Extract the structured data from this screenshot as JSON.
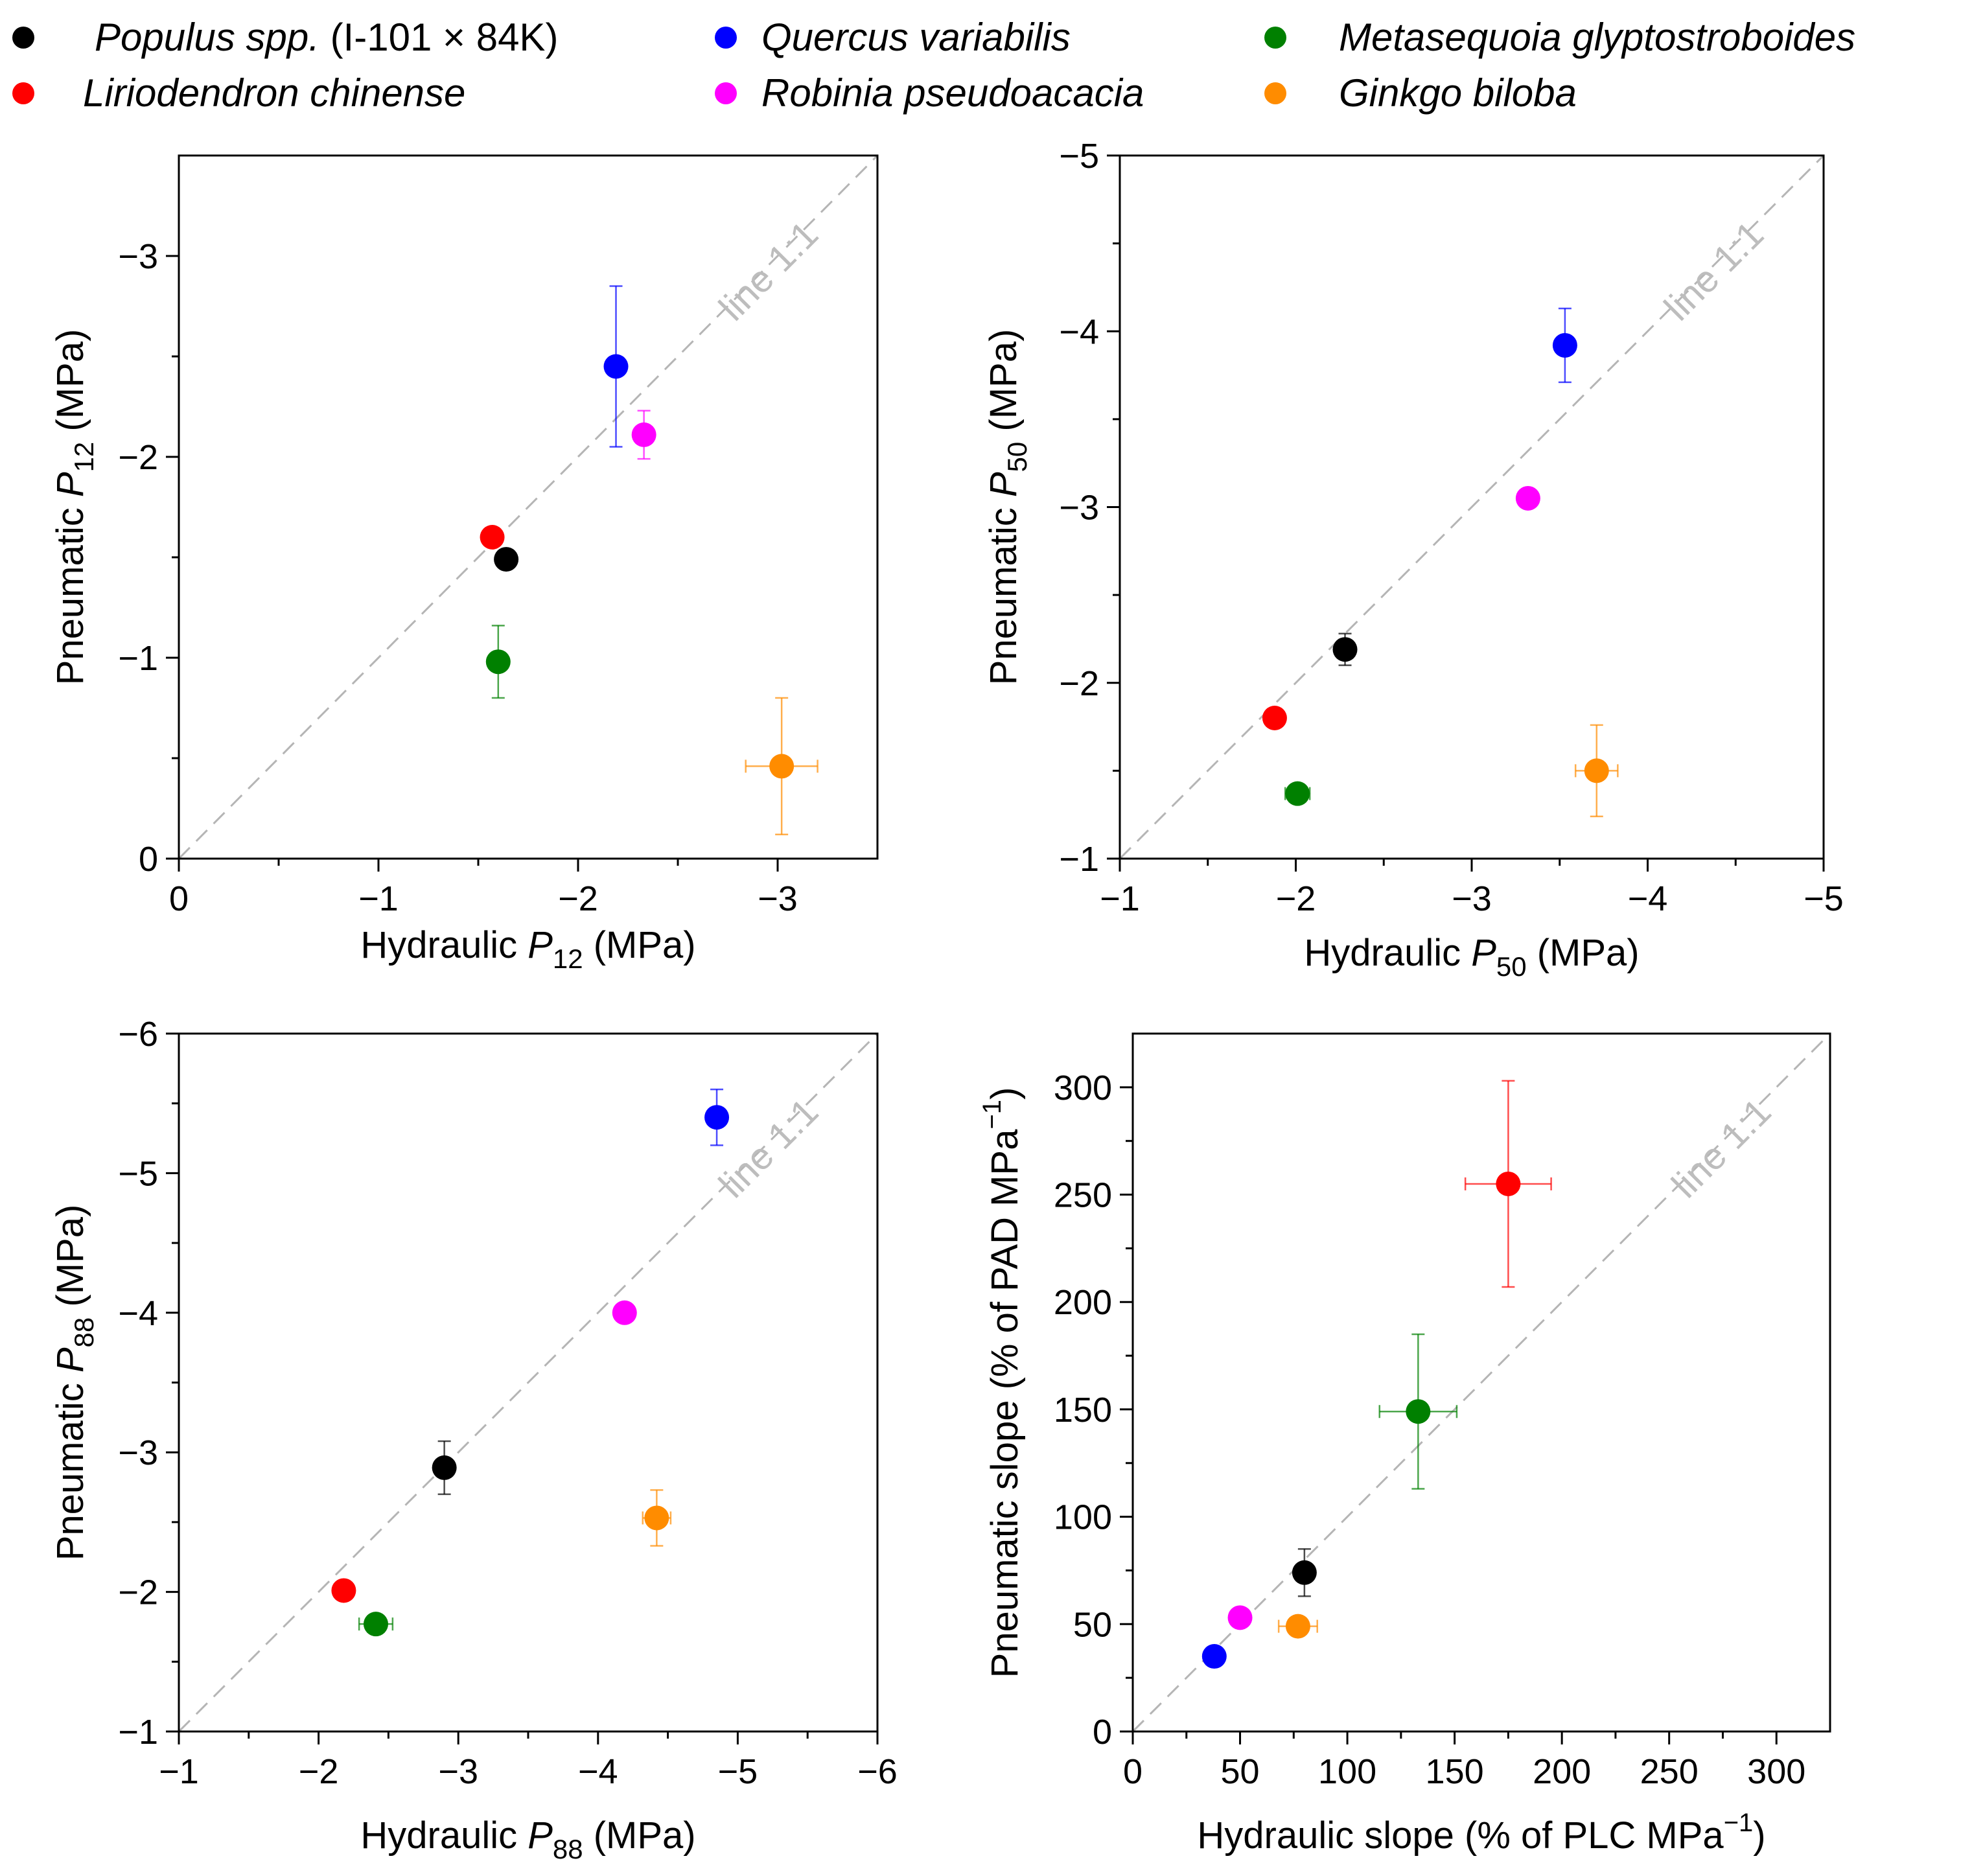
{
  "legend": [
    {
      "name": "Populus spp.",
      "suffix": " (I-101 × 84K)",
      "color": "#000000"
    },
    {
      "name": "Liriodendron chinense",
      "suffix": "",
      "color": "#ff0000"
    },
    {
      "name": "Quercus variabilis",
      "suffix": "",
      "color": "#0000ff"
    },
    {
      "name": "Robinia pseudoacacia",
      "suffix": "",
      "color": "#ff00ff"
    },
    {
      "name": "Metasequoia glyptostroboides",
      "suffix": "",
      "color": "#008000"
    },
    {
      "name": "Ginkgo biloba",
      "suffix": "",
      "color": "#ff8c00"
    }
  ],
  "chart_data": [
    {
      "type": "scatter",
      "id": "p12",
      "xlabel": {
        "prefix": "Hydraulic ",
        "symbol": "P",
        "sub": "12",
        "unit": " (MPa)"
      },
      "ylabel": {
        "prefix": "Pneumatic ",
        "symbol": "P",
        "sub": "12",
        "unit": " (MPa)"
      },
      "xlim": [
        0,
        -3.5
      ],
      "ylim": [
        0,
        -3.5
      ],
      "xticks": [
        0,
        -1,
        -2,
        -3
      ],
      "xtick_labels": [
        "0",
        "−1",
        "−2",
        "−3"
      ],
      "yticks": [
        0,
        -1,
        -2,
        -3
      ],
      "ytick_labels": [
        "0",
        "−1",
        "−2",
        "−3"
      ],
      "reference_line": "line 1:1",
      "points": [
        {
          "species": "Populus spp.",
          "color": "#000000",
          "x": -1.64,
          "y": -1.49,
          "xerr": 0,
          "yerr": 0
        },
        {
          "species": "Liriodendron chinense",
          "color": "#ff0000",
          "x": -1.57,
          "y": -1.6,
          "xerr": 0,
          "yerr": 0
        },
        {
          "species": "Quercus variabilis",
          "color": "#0000ff",
          "x": -2.19,
          "y": -2.45,
          "xerr": 0,
          "yerr": 0.4
        },
        {
          "species": "Robinia pseudoacacia",
          "color": "#ff00ff",
          "x": -2.33,
          "y": -2.11,
          "xerr": 0,
          "yerr": 0.12
        },
        {
          "species": "Metasequoia glyptostroboides",
          "color": "#008000",
          "x": -1.6,
          "y": -0.98,
          "xerr": 0,
          "yerr": 0.18
        },
        {
          "species": "Ginkgo biloba",
          "color": "#ff8c00",
          "x": -3.02,
          "y": -0.46,
          "xerr": 0.18,
          "yerr": 0.34
        }
      ]
    },
    {
      "type": "scatter",
      "id": "p50",
      "xlabel": {
        "prefix": "Hydraulic ",
        "symbol": "P",
        "sub": "50",
        "unit": " (MPa)"
      },
      "ylabel": {
        "prefix": "Pneumatic ",
        "symbol": "P",
        "sub": "50",
        "unit": " (MPa)"
      },
      "xlim": [
        -1,
        -5
      ],
      "ylim": [
        -1,
        -5
      ],
      "xticks": [
        -1,
        -2,
        -3,
        -4,
        -5
      ],
      "xtick_labels": [
        "−1",
        "−2",
        "−3",
        "−4",
        "−5"
      ],
      "yticks": [
        -1,
        -2,
        -3,
        -4,
        -5
      ],
      "ytick_labels": [
        "−1",
        "−2",
        "−3",
        "−4",
        "−5"
      ],
      "reference_line": "line 1:1",
      "points": [
        {
          "species": "Populus spp.",
          "color": "#000000",
          "x": -2.28,
          "y": -2.19,
          "xerr": 0,
          "yerr": 0.09
        },
        {
          "species": "Liriodendron chinense",
          "color": "#ff0000",
          "x": -1.88,
          "y": -1.8,
          "xerr": 0,
          "yerr": 0
        },
        {
          "species": "Quercus variabilis",
          "color": "#0000ff",
          "x": -3.53,
          "y": -3.92,
          "xerr": 0,
          "yerr": 0.21
        },
        {
          "species": "Robinia pseudoacacia",
          "color": "#ff00ff",
          "x": -3.32,
          "y": -3.05,
          "xerr": 0,
          "yerr": 0
        },
        {
          "species": "Metasequoia glyptostroboides",
          "color": "#008000",
          "x": -2.01,
          "y": -1.37,
          "xerr": 0.07,
          "yerr": 0
        },
        {
          "species": "Ginkgo biloba",
          "color": "#ff8c00",
          "x": -3.71,
          "y": -1.5,
          "xerr": 0.12,
          "yerr": 0.26
        }
      ]
    },
    {
      "type": "scatter",
      "id": "p88",
      "xlabel": {
        "prefix": "Hydraulic ",
        "symbol": "P",
        "sub": "88",
        "unit": " (MPa)"
      },
      "ylabel": {
        "prefix": "Pneumatic ",
        "symbol": "P",
        "sub": "88",
        "unit": " (MPa)"
      },
      "xlim": [
        -1,
        -6
      ],
      "ylim": [
        -1,
        -6
      ],
      "xticks": [
        -1,
        -2,
        -3,
        -4,
        -5,
        -6
      ],
      "xtick_labels": [
        "−1",
        "−2",
        "−3",
        "−4",
        "−5",
        "−6"
      ],
      "yticks": [
        -1,
        -2,
        -3,
        -4,
        -5,
        -6
      ],
      "ytick_labels": [
        "−1",
        "−2",
        "−3",
        "−4",
        "−5",
        "−6"
      ],
      "reference_line": "line 1:1",
      "points": [
        {
          "species": "Populus spp.",
          "color": "#000000",
          "x": -2.9,
          "y": -2.89,
          "xerr": 0,
          "yerr": 0.19
        },
        {
          "species": "Liriodendron chinense",
          "color": "#ff0000",
          "x": -2.18,
          "y": -2.01,
          "xerr": 0,
          "yerr": 0
        },
        {
          "species": "Quercus variabilis",
          "color": "#0000ff",
          "x": -4.85,
          "y": -5.4,
          "xerr": 0,
          "yerr": 0.2
        },
        {
          "species": "Robinia pseudoacacia",
          "color": "#ff00ff",
          "x": -4.19,
          "y": -4.0,
          "xerr": 0,
          "yerr": 0
        },
        {
          "species": "Metasequoia glyptostroboides",
          "color": "#008000",
          "x": -2.41,
          "y": -1.77,
          "xerr": 0.12,
          "yerr": 0
        },
        {
          "species": "Ginkgo biloba",
          "color": "#ff8c00",
          "x": -4.42,
          "y": -2.53,
          "xerr": 0.1,
          "yerr": 0.2
        }
      ]
    },
    {
      "type": "scatter",
      "id": "slope",
      "xlabel": {
        "prefix": "Hydraulic slope (% of PLC MPa",
        "sup": "−1",
        "suffix": ")"
      },
      "ylabel": {
        "prefix": "Pneumatic slope (% of PAD MPa",
        "sup": "−1",
        "suffix": ")"
      },
      "xlim": [
        0,
        325
      ],
      "ylim": [
        0,
        325
      ],
      "xticks": [
        0,
        50,
        100,
        150,
        200,
        250,
        300
      ],
      "xtick_labels": [
        "0",
        "50",
        "100",
        "150",
        "200",
        "250",
        "300"
      ],
      "yticks": [
        0,
        50,
        100,
        150,
        200,
        250,
        300
      ],
      "ytick_labels": [
        "0",
        "50",
        "100",
        "150",
        "200",
        "250",
        "300"
      ],
      "reference_line": "line 1:1",
      "points": [
        {
          "species": "Populus spp.",
          "color": "#000000",
          "x": 80,
          "y": 74,
          "xerr": 0,
          "yerr": 11
        },
        {
          "species": "Liriodendron chinense",
          "color": "#ff0000",
          "x": 175,
          "y": 255,
          "xerr": 20,
          "yerr": 48
        },
        {
          "species": "Quercus variabilis",
          "color": "#0000ff",
          "x": 38,
          "y": 35,
          "xerr": 0,
          "yerr": 0
        },
        {
          "species": "Robinia pseudoacacia",
          "color": "#ff00ff",
          "x": 50,
          "y": 53,
          "xerr": 0,
          "yerr": 0
        },
        {
          "species": "Metasequoia glyptostroboides",
          "color": "#008000",
          "x": 133,
          "y": 149,
          "xerr": 18,
          "yerr": 36
        },
        {
          "species": "Ginkgo biloba",
          "color": "#ff8c00",
          "x": 77,
          "y": 49,
          "xerr": 9,
          "yerr": 0
        }
      ]
    }
  ]
}
